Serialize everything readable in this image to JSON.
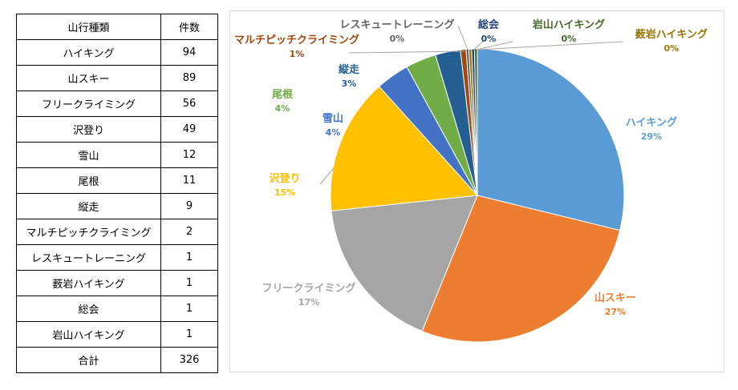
{
  "table": {
    "headers": [
      "山行種類",
      "件数"
    ],
    "rows": [
      [
        "ハイキング",
        "94"
      ],
      [
        "山スキー",
        "89"
      ],
      [
        "フリークライミング",
        "56"
      ],
      [
        "沢登り",
        "49"
      ],
      [
        "雪山",
        "12"
      ],
      [
        "尾根",
        "11"
      ],
      [
        "縦走",
        "9"
      ],
      [
        "マルチピッチクライミング",
        "2"
      ],
      [
        "レスキュートレーニング",
        "1"
      ],
      [
        "薮岩ハイキング",
        "1"
      ],
      [
        "総会",
        "1"
      ],
      [
        "岩山ハイキング",
        "1"
      ]
    ],
    "total": [
      "合計",
      "326"
    ]
  },
  "chart_data": {
    "type": "pie",
    "title": "",
    "categories": [
      "ハイキング",
      "山スキー",
      "フリークライミング",
      "沢登り",
      "雪山",
      "尾根",
      "縦走",
      "マルチピッチクライミング",
      "レスキュートレーニング",
      "総会",
      "岩山ハイキング",
      "薮岩ハイキング"
    ],
    "values": [
      94,
      89,
      56,
      49,
      12,
      11,
      9,
      2,
      1,
      1,
      1,
      1
    ],
    "percent_labels": [
      "29%",
      "27%",
      "17%",
      "15%",
      "4%",
      "4%",
      "3%",
      "1%",
      "0%",
      "0%",
      "0%",
      "0%"
    ],
    "colors": [
      "#5B9BD5",
      "#ED7D31",
      "#A5A5A5",
      "#FFC000",
      "#4472C4",
      "#70AD47",
      "#255E91",
      "#9E480E",
      "#636363",
      "#997300",
      "#264478",
      "#43682B"
    ],
    "label_colors": [
      "#5B9BD5",
      "#ED7D31",
      "#A5A5A5",
      "#FFC000",
      "#4472C4",
      "#70AD47",
      "#255E91",
      "#9E480E",
      "#636363",
      "#264478",
      "#43682B",
      "#997300"
    ],
    "legend": "none"
  }
}
